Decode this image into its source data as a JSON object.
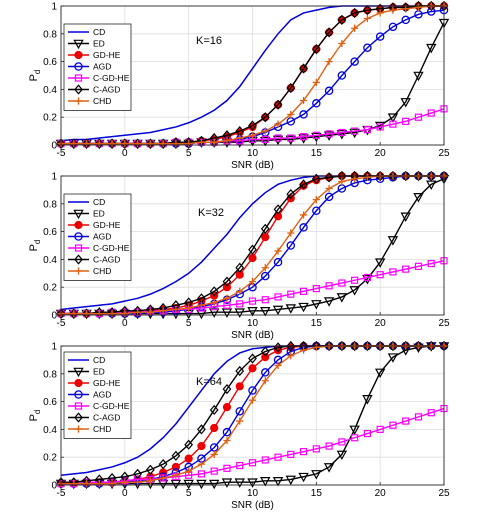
{
  "chart_data": [
    {
      "type": "line",
      "annotation": "K=16",
      "xlabel": "SNR (dB)",
      "ylabel_main": "P",
      "ylabel_sub": "d",
      "xlim": [
        -5,
        25
      ],
      "ylim": [
        0,
        1
      ],
      "xticks": [
        -5,
        0,
        5,
        10,
        15,
        20,
        25
      ],
      "yticks": [
        0,
        0.2,
        0.4,
        0.6,
        0.8,
        1
      ],
      "x": [
        -5,
        -4,
        -3,
        -2,
        -1,
        0,
        1,
        2,
        3,
        4,
        5,
        6,
        7,
        8,
        9,
        10,
        11,
        12,
        13,
        14,
        15,
        16,
        17,
        18,
        19,
        20,
        21,
        22,
        23,
        24,
        25
      ],
      "series": [
        {
          "name": "CD",
          "color": "#0000dd",
          "marker": "none",
          "values": [
            0.03,
            0.04,
            0.04,
            0.05,
            0.06,
            0.07,
            0.08,
            0.09,
            0.11,
            0.13,
            0.16,
            0.2,
            0.25,
            0.32,
            0.42,
            0.55,
            0.68,
            0.8,
            0.9,
            0.95,
            0.97,
            0.99,
            1,
            1,
            1,
            1,
            1,
            1,
            1,
            1,
            1
          ]
        },
        {
          "name": "ED",
          "color": "#000000",
          "marker": "tri-down",
          "values": [
            0.01,
            0.01,
            0.01,
            0.01,
            0.01,
            0.01,
            0.01,
            0.01,
            0.01,
            0.01,
            0.01,
            0.02,
            0.02,
            0.02,
            0.02,
            0.03,
            0.03,
            0.04,
            0.04,
            0.05,
            0.06,
            0.07,
            0.08,
            0.09,
            0.11,
            0.14,
            0.2,
            0.31,
            0.5,
            0.7,
            0.88
          ]
        },
        {
          "name": "GD-HE",
          "color": "#ee0000",
          "marker": "dot",
          "values": [
            0.01,
            0.01,
            0.01,
            0.01,
            0.01,
            0.01,
            0.01,
            0.01,
            0.01,
            0.02,
            0.02,
            0.03,
            0.04,
            0.06,
            0.09,
            0.13,
            0.2,
            0.29,
            0.41,
            0.55,
            0.69,
            0.81,
            0.9,
            0.95,
            0.97,
            0.98,
            0.99,
            0.99,
            1,
            1,
            1
          ]
        },
        {
          "name": "AGD",
          "color": "#0000dd",
          "marker": "circle",
          "values": [
            0.01,
            0.01,
            0.01,
            0.01,
            0.01,
            0.01,
            0.01,
            0.01,
            0.01,
            0.01,
            0.01,
            0.02,
            0.02,
            0.03,
            0.04,
            0.06,
            0.09,
            0.13,
            0.17,
            0.22,
            0.3,
            0.39,
            0.5,
            0.6,
            0.7,
            0.78,
            0.85,
            0.9,
            0.94,
            0.96,
            0.97
          ]
        },
        {
          "name": "C-GD-HE",
          "color": "#ff00ff",
          "marker": "square",
          "values": [
            0.01,
            0.01,
            0.01,
            0.01,
            0.01,
            0.01,
            0.01,
            0.01,
            0.01,
            0.02,
            0.02,
            0.02,
            0.02,
            0.03,
            0.03,
            0.04,
            0.04,
            0.05,
            0.05,
            0.06,
            0.07,
            0.08,
            0.09,
            0.1,
            0.11,
            0.13,
            0.15,
            0.17,
            0.2,
            0.23,
            0.26
          ]
        },
        {
          "name": "C-AGD",
          "color": "#000000",
          "marker": "diamond",
          "values": [
            0.01,
            0.01,
            0.01,
            0.01,
            0.01,
            0.01,
            0.01,
            0.01,
            0.01,
            0.02,
            0.02,
            0.03,
            0.05,
            0.07,
            0.1,
            0.14,
            0.2,
            0.29,
            0.41,
            0.55,
            0.69,
            0.81,
            0.9,
            0.95,
            0.97,
            0.98,
            0.99,
            0.99,
            1,
            1,
            1
          ]
        },
        {
          "name": "CHD",
          "color": "#e06010",
          "marker": "plus",
          "values": [
            0.01,
            0.01,
            0.01,
            0.01,
            0.01,
            0.01,
            0.01,
            0.01,
            0.01,
            0.01,
            0.01,
            0.02,
            0.02,
            0.03,
            0.05,
            0.07,
            0.1,
            0.15,
            0.22,
            0.32,
            0.45,
            0.6,
            0.73,
            0.84,
            0.91,
            0.95,
            0.97,
            0.98,
            0.99,
            1,
            1
          ]
        }
      ]
    },
    {
      "type": "line",
      "annotation": "K=32",
      "xlabel": "SNR (dB)",
      "ylabel_main": "P",
      "ylabel_sub": "d",
      "xlim": [
        -5,
        25
      ],
      "ylim": [
        0,
        1
      ],
      "xticks": [
        -5,
        0,
        5,
        10,
        15,
        20,
        25
      ],
      "yticks": [
        0,
        0.2,
        0.4,
        0.6,
        0.8,
        1
      ],
      "x": [
        -5,
        -4,
        -3,
        -2,
        -1,
        0,
        1,
        2,
        3,
        4,
        5,
        6,
        7,
        8,
        9,
        10,
        11,
        12,
        13,
        14,
        15,
        16,
        17,
        18,
        19,
        20,
        21,
        22,
        23,
        24,
        25
      ],
      "series": [
        {
          "name": "CD",
          "color": "#0000dd",
          "marker": "none",
          "values": [
            0.04,
            0.05,
            0.06,
            0.07,
            0.08,
            0.1,
            0.12,
            0.15,
            0.19,
            0.24,
            0.3,
            0.38,
            0.48,
            0.58,
            0.7,
            0.8,
            0.88,
            0.94,
            0.97,
            0.99,
            1,
            1,
            1,
            1,
            1,
            1,
            1,
            1,
            1,
            1,
            1
          ]
        },
        {
          "name": "ED",
          "color": "#000000",
          "marker": "tri-down",
          "values": [
            0.01,
            0.01,
            0.01,
            0.01,
            0.01,
            0.01,
            0.01,
            0.01,
            0.01,
            0.01,
            0.01,
            0.01,
            0.02,
            0.02,
            0.02,
            0.03,
            0.03,
            0.04,
            0.05,
            0.06,
            0.08,
            0.1,
            0.13,
            0.18,
            0.26,
            0.38,
            0.54,
            0.71,
            0.85,
            0.94,
            0.98
          ]
        },
        {
          "name": "GD-HE",
          "color": "#ee0000",
          "marker": "dot",
          "values": [
            0.01,
            0.01,
            0.01,
            0.01,
            0.01,
            0.02,
            0.02,
            0.03,
            0.04,
            0.05,
            0.07,
            0.1,
            0.14,
            0.2,
            0.29,
            0.41,
            0.56,
            0.71,
            0.84,
            0.93,
            0.97,
            0.99,
            1,
            1,
            1,
            1,
            1,
            1,
            1,
            1,
            1
          ]
        },
        {
          "name": "AGD",
          "color": "#0000dd",
          "marker": "circle",
          "values": [
            0.01,
            0.01,
            0.01,
            0.01,
            0.01,
            0.01,
            0.01,
            0.02,
            0.02,
            0.03,
            0.04,
            0.06,
            0.08,
            0.11,
            0.15,
            0.2,
            0.28,
            0.38,
            0.5,
            0.63,
            0.75,
            0.85,
            0.91,
            0.95,
            0.97,
            0.98,
            0.99,
            1,
            1,
            1,
            1
          ]
        },
        {
          "name": "C-GD-HE",
          "color": "#ff00ff",
          "marker": "square",
          "values": [
            0.01,
            0.01,
            0.01,
            0.01,
            0.02,
            0.02,
            0.02,
            0.03,
            0.03,
            0.04,
            0.04,
            0.05,
            0.06,
            0.07,
            0.08,
            0.1,
            0.11,
            0.13,
            0.15,
            0.17,
            0.19,
            0.21,
            0.23,
            0.25,
            0.27,
            0.29,
            0.31,
            0.33,
            0.35,
            0.37,
            0.39
          ]
        },
        {
          "name": "C-AGD",
          "color": "#000000",
          "marker": "diamond",
          "values": [
            0.01,
            0.01,
            0.01,
            0.02,
            0.02,
            0.03,
            0.03,
            0.04,
            0.05,
            0.07,
            0.09,
            0.12,
            0.17,
            0.24,
            0.34,
            0.47,
            0.62,
            0.76,
            0.87,
            0.94,
            0.98,
            0.99,
            1,
            1,
            1,
            1,
            1,
            1,
            1,
            1,
            1
          ]
        },
        {
          "name": "CHD",
          "color": "#e06010",
          "marker": "plus",
          "values": [
            0.01,
            0.01,
            0.01,
            0.01,
            0.01,
            0.01,
            0.02,
            0.02,
            0.03,
            0.04,
            0.05,
            0.07,
            0.09,
            0.12,
            0.17,
            0.24,
            0.34,
            0.46,
            0.59,
            0.72,
            0.83,
            0.91,
            0.96,
            0.98,
            0.99,
            1,
            1,
            1,
            1,
            1,
            1
          ]
        }
      ]
    },
    {
      "type": "line",
      "annotation": "K=64",
      "xlabel": "SNR (dB)",
      "ylabel_main": "P",
      "ylabel_sub": "d",
      "xlim": [
        -5,
        25
      ],
      "ylim": [
        0,
        1
      ],
      "xticks": [
        -5,
        0,
        5,
        10,
        15,
        20,
        25
      ],
      "yticks": [
        0,
        0.2,
        0.4,
        0.6,
        0.8,
        1
      ],
      "x": [
        -5,
        -4,
        -3,
        -2,
        -1,
        0,
        1,
        2,
        3,
        4,
        5,
        6,
        7,
        8,
        9,
        10,
        11,
        12,
        13,
        14,
        15,
        16,
        17,
        18,
        19,
        20,
        21,
        22,
        23,
        24,
        25
      ],
      "series": [
        {
          "name": "CD",
          "color": "#0000dd",
          "marker": "none",
          "values": [
            0.07,
            0.08,
            0.09,
            0.11,
            0.13,
            0.16,
            0.2,
            0.26,
            0.34,
            0.44,
            0.56,
            0.68,
            0.8,
            0.89,
            0.95,
            0.98,
            0.99,
            1,
            1,
            1,
            1,
            1,
            1,
            1,
            1,
            1,
            1,
            1,
            1,
            1,
            1
          ]
        },
        {
          "name": "ED",
          "color": "#000000",
          "marker": "tri-down",
          "values": [
            0.01,
            0.01,
            0.01,
            0.01,
            0.01,
            0.01,
            0.01,
            0.01,
            0.01,
            0.01,
            0.01,
            0.01,
            0.01,
            0.02,
            0.02,
            0.02,
            0.03,
            0.03,
            0.04,
            0.06,
            0.08,
            0.13,
            0.22,
            0.4,
            0.62,
            0.81,
            0.92,
            0.97,
            0.99,
            1,
            1
          ]
        },
        {
          "name": "GD-HE",
          "color": "#ee0000",
          "marker": "dot",
          "values": [
            0.01,
            0.01,
            0.01,
            0.02,
            0.02,
            0.03,
            0.04,
            0.06,
            0.09,
            0.13,
            0.19,
            0.28,
            0.41,
            0.56,
            0.71,
            0.84,
            0.92,
            0.97,
            0.99,
            1,
            1,
            1,
            1,
            1,
            1,
            1,
            1,
            1,
            1,
            1,
            1
          ]
        },
        {
          "name": "AGD",
          "color": "#0000dd",
          "marker": "circle",
          "values": [
            0.01,
            0.01,
            0.01,
            0.01,
            0.02,
            0.02,
            0.03,
            0.04,
            0.06,
            0.09,
            0.13,
            0.19,
            0.27,
            0.38,
            0.53,
            0.68,
            0.81,
            0.9,
            0.96,
            0.99,
            1,
            1,
            1,
            1,
            1,
            1,
            1,
            1,
            1,
            1,
            1
          ]
        },
        {
          "name": "C-GD-HE",
          "color": "#ff00ff",
          "marker": "square",
          "values": [
            0.01,
            0.01,
            0.02,
            0.02,
            0.02,
            0.03,
            0.04,
            0.04,
            0.05,
            0.06,
            0.07,
            0.08,
            0.1,
            0.12,
            0.14,
            0.16,
            0.18,
            0.2,
            0.22,
            0.24,
            0.26,
            0.28,
            0.31,
            0.34,
            0.37,
            0.4,
            0.43,
            0.46,
            0.49,
            0.52,
            0.55
          ]
        },
        {
          "name": "C-AGD",
          "color": "#000000",
          "marker": "diamond",
          "values": [
            0.02,
            0.02,
            0.03,
            0.04,
            0.05,
            0.06,
            0.08,
            0.11,
            0.15,
            0.21,
            0.29,
            0.4,
            0.54,
            0.69,
            0.82,
            0.91,
            0.96,
            0.99,
            1,
            1,
            1,
            1,
            1,
            1,
            1,
            1,
            1,
            1,
            1,
            1,
            1
          ]
        },
        {
          "name": "CHD",
          "color": "#e06010",
          "marker": "plus",
          "values": [
            0.01,
            0.01,
            0.01,
            0.01,
            0.01,
            0.02,
            0.02,
            0.03,
            0.05,
            0.07,
            0.1,
            0.15,
            0.22,
            0.32,
            0.46,
            0.61,
            0.75,
            0.86,
            0.93,
            0.97,
            0.99,
            1,
            1,
            1,
            1,
            1,
            1,
            1,
            1,
            1,
            1
          ]
        }
      ]
    }
  ]
}
